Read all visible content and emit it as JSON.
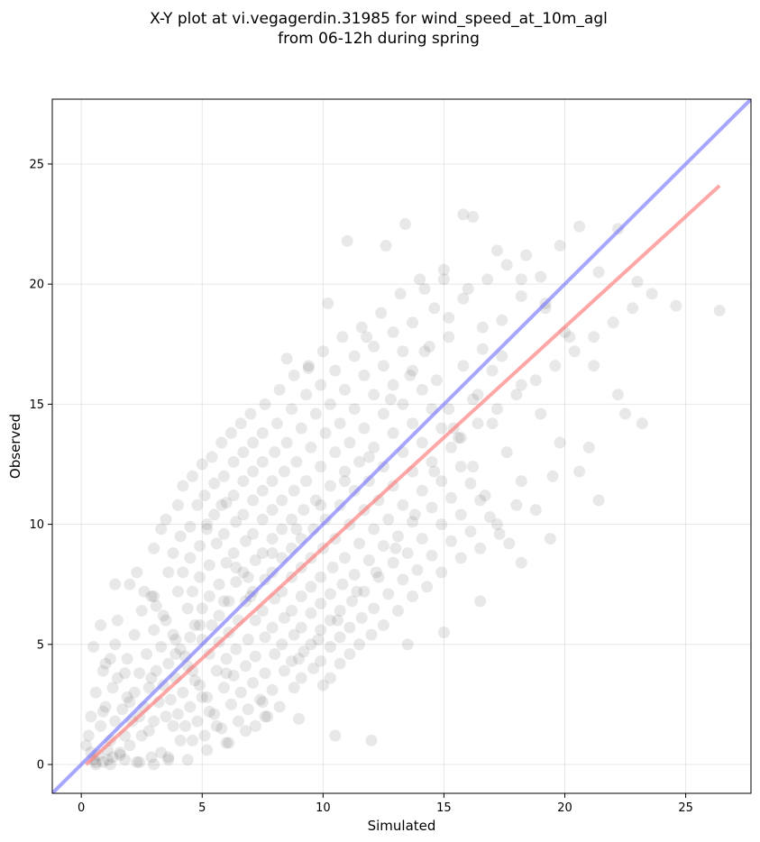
{
  "chart_data": {
    "type": "scatter",
    "title_line1": "X-Y plot at vi.vegagerdin.31985 for wind_speed_at_10m_agl",
    "title_line2": "from 06-12h during spring",
    "xlabel": "Simulated",
    "ylabel": "Observed",
    "xlim": [
      -1.2,
      27.7
    ],
    "ylim": [
      -1.2,
      27.7
    ],
    "x_ticks": [
      0,
      5,
      10,
      15,
      20,
      25
    ],
    "y_ticks": [
      0,
      5,
      10,
      15,
      20,
      25
    ],
    "grid": true,
    "point_color": "#000000",
    "point_opacity": 0.09,
    "identity_line": {
      "color": "#7777ff",
      "opacity": 0.65
    },
    "fit_line": {
      "color": "#ff7777",
      "opacity": 0.65,
      "x": [
        0.2,
        26.4
      ],
      "y": [
        0.0,
        24.1
      ]
    },
    "series": [
      {
        "x": [
          0.3,
          0.5,
          0.7,
          0.9,
          1.1,
          1.3,
          0.4,
          0.8,
          1.2,
          1.6,
          0.6,
          1.0,
          1.4,
          1.8,
          2.0,
          0.5,
          0.9,
          1.3,
          1.7,
          2.1,
          2.5,
          1.0,
          1.5,
          2.0,
          2.4,
          2.8,
          1.2,
          1.8,
          2.2,
          2.6,
          3.0,
          0.6,
          1.1,
          1.6,
          2.3,
          2.9,
          3.3,
          3.6,
          0.8,
          1.4,
          1.9,
          2.4,
          2.8,
          3.2,
          3.5,
          3.8,
          4.1,
          1.5,
          2.2,
          2.7,
          3.1,
          3.4,
          3.7,
          4.0,
          4.3,
          4.6,
          2.0,
          2.5,
          3.0,
          3.3,
          3.6,
          3.9,
          4.2,
          4.5,
          4.8,
          5.1,
          2.3,
          2.9,
          3.4,
          3.8,
          4.1,
          4.4,
          4.7,
          5.0,
          5.3,
          5.6,
          2.6,
          3.1,
          3.5,
          3.9,
          4.3,
          4.6,
          4.9,
          5.2,
          5.5,
          5.8,
          6.1,
          3.0,
          3.6,
          4.0,
          4.4,
          4.7,
          5.0,
          5.3,
          5.6,
          5.9,
          6.2,
          6.5,
          3.3,
          3.8,
          4.2,
          4.6,
          5.0,
          5.4,
          5.7,
          6.0,
          6.3,
          6.6,
          6.9,
          7.2,
          3.5,
          4.1,
          4.5,
          4.9,
          5.3,
          5.7,
          6.1,
          6.4,
          6.8,
          7.1,
          7.4,
          7.7,
          4.0,
          4.5,
          4.9,
          5.3,
          5.7,
          6.1,
          6.5,
          6.9,
          7.2,
          7.6,
          7.9,
          8.2,
          4.2,
          4.8,
          5.2,
          5.6,
          6.0,
          6.4,
          6.8,
          7.2,
          7.6,
          8.0,
          8.4,
          8.8,
          4.6,
          5.1,
          5.5,
          5.9,
          6.3,
          6.7,
          7.1,
          7.5,
          7.9,
          8.3,
          8.7,
          9.1,
          5.0,
          5.5,
          6.0,
          6.4,
          6.8,
          7.2,
          7.6,
          8.0,
          8.4,
          8.8,
          9.2,
          9.6,
          10.0,
          5.4,
          5.9,
          6.3,
          6.7,
          7.1,
          7.5,
          7.9,
          8.3,
          8.7,
          9.1,
          9.5,
          9.9,
          10.3,
          5.8,
          6.3,
          6.7,
          7.1,
          7.5,
          7.9,
          8.3,
          8.7,
          9.1,
          9.5,
          9.9,
          10.3,
          10.7,
          6.2,
          6.7,
          7.1,
          7.5,
          7.9,
          8.3,
          8.7,
          9.1,
          9.5,
          9.9,
          10.3,
          10.7,
          11.1,
          6.6,
          7.1,
          7.5,
          7.9,
          8.3,
          8.7,
          9.1,
          9.5,
          9.9,
          10.3,
          10.7,
          11.1,
          11.5,
          7.0,
          7.5,
          8.0,
          8.4,
          8.8,
          9.2,
          9.6,
          10.0,
          10.4,
          10.8,
          11.2,
          11.6,
          12.0,
          7.6,
          8.1,
          8.5,
          8.9,
          9.3,
          9.7,
          10.1,
          10.5,
          10.9,
          11.3,
          11.7,
          12.1,
          12.5,
          8.2,
          8.7,
          9.1,
          9.5,
          9.9,
          10.3,
          10.7,
          11.1,
          11.5,
          11.9,
          12.3,
          12.7,
          13.1,
          8.8,
          9.3,
          9.7,
          10.1,
          10.5,
          10.9,
          11.3,
          11.7,
          12.1,
          12.5,
          12.9,
          13.3,
          13.7,
          9.4,
          9.9,
          10.3,
          10.7,
          11.1,
          11.5,
          11.9,
          12.3,
          12.7,
          13.1,
          13.5,
          13.9,
          14.3,
          10.0,
          10.5,
          10.9,
          11.3,
          11.7,
          12.1,
          12.5,
          12.9,
          13.3,
          13.7,
          14.1,
          14.5,
          14.9,
          10.8,
          11.3,
          11.7,
          12.1,
          12.5,
          12.9,
          13.3,
          13.7,
          14.1,
          14.5,
          14.9,
          15.3,
          15.7,
          11.6,
          12.1,
          12.5,
          12.9,
          13.3,
          13.7,
          14.1,
          14.5,
          14.9,
          15.3,
          15.7,
          16.1,
          16.5,
          12.4,
          12.9,
          13.3,
          13.7,
          14.1,
          14.5,
          14.9,
          15.3,
          15.7,
          16.1,
          16.5,
          16.9,
          17.3,
          13.2,
          13.7,
          14.2,
          14.7,
          15.2,
          15.7,
          16.2,
          16.7,
          17.2,
          17.7,
          18.2,
          14.0,
          14.6,
          15.2,
          15.8,
          16.4,
          17.0,
          17.6,
          18.2,
          18.8,
          19.4,
          15.0,
          15.8,
          16.6,
          17.4,
          18.2,
          19.0,
          19.8,
          20.6,
          21.4,
          16.2,
          17.2,
          18.2,
          19.2,
          20.2,
          21.2,
          22.2,
          23.2,
          24.6,
          26.4,
          0.2,
          0.4,
          0.6,
          1.2,
          1.8,
          2.4,
          3.0,
          3.6,
          4.4,
          5.2,
          6.0,
          6.8,
          7.6,
          0.9,
          1.9,
          2.9,
          3.9,
          4.9,
          5.9,
          6.9,
          7.9,
          8.9,
          9.9,
          10.9,
          11.9,
          1.4,
          3.0,
          4.5,
          6.0,
          7.5,
          9.0,
          10.5,
          12.0,
          13.5,
          15.0,
          16.5,
          18.0,
          19.5,
          21.0,
          22.5,
          9.0,
          9.8,
          10.6,
          11.4,
          12.2,
          13.0,
          13.8,
          14.6,
          15.4,
          16.2,
          17.0,
          12.8,
          13.6,
          14.4,
          15.2,
          16.0,
          16.8,
          17.6,
          18.4,
          19.2,
          20.0,
          15.6,
          16.4,
          17.2,
          18.0,
          18.8,
          19.6,
          20.4,
          21.2,
          22.0,
          22.8,
          23.6,
          5.2,
          5.8,
          6.4,
          7.0,
          8.5,
          9.4,
          10.2,
          11.0,
          11.8,
          12.6,
          13.4,
          14.2,
          15.0,
          15.8,
          16.6,
          17.4,
          18.2,
          19.0,
          19.8,
          20.6,
          21.4,
          22.2,
          23.0
        ],
        "y": [
          1.2,
          0.2,
          0.4,
          0.1,
          0.6,
          0.3,
          2.0,
          1.6,
          1.0,
          0.5,
          3.0,
          2.4,
          1.8,
          1.2,
          0.8,
          4.9,
          3.9,
          3.2,
          2.3,
          1.8,
          1.2,
          4.2,
          3.6,
          2.6,
          2.0,
          1.4,
          4.4,
          3.8,
          3.0,
          2.4,
          1.8,
          0.0,
          0.2,
          0.4,
          0.1,
          0.3,
          0.5,
          0.2,
          5.8,
          5.0,
          4.4,
          3.8,
          3.2,
          2.6,
          2.0,
          1.6,
          1.0,
          6.0,
          5.4,
          4.6,
          3.9,
          3.3,
          2.7,
          2.1,
          1.6,
          1.0,
          7.5,
          6.4,
          5.6,
          4.9,
          4.2,
          3.6,
          3.0,
          2.4,
          1.8,
          1.2,
          8.0,
          7.0,
          6.2,
          5.4,
          4.8,
          4.1,
          3.5,
          2.8,
          2.2,
          1.6,
          7.2,
          6.6,
          6.0,
          5.2,
          4.5,
          3.9,
          3.3,
          2.8,
          2.1,
          1.5,
          0.9,
          9.0,
          8.0,
          7.2,
          6.5,
          5.8,
          5.2,
          4.6,
          3.9,
          3.2,
          2.5,
          1.8,
          9.8,
          8.8,
          8.0,
          7.2,
          6.5,
          5.8,
          5.1,
          4.4,
          3.7,
          3.0,
          2.3,
          1.6,
          10.2,
          9.5,
          8.6,
          7.8,
          7.0,
          6.2,
          5.5,
          4.8,
          4.1,
          3.4,
          2.7,
          2.0,
          10.8,
          9.9,
          9.1,
          8.3,
          7.5,
          6.8,
          6.0,
          5.2,
          4.5,
          3.8,
          3.1,
          2.4,
          11.6,
          10.8,
          10.0,
          9.2,
          8.4,
          7.6,
          6.8,
          6.0,
          5.3,
          4.6,
          3.9,
          3.2,
          12.0,
          11.2,
          10.4,
          9.6,
          8.8,
          8.0,
          7.2,
          6.4,
          5.7,
          5.0,
          4.3,
          3.6,
          12.5,
          11.7,
          10.9,
          10.1,
          9.3,
          8.5,
          7.7,
          6.9,
          6.1,
          5.4,
          4.7,
          4.0,
          3.3,
          12.8,
          12.0,
          11.2,
          10.4,
          9.6,
          8.8,
          8.0,
          7.2,
          6.4,
          5.7,
          5.0,
          4.3,
          3.6,
          13.4,
          12.6,
          11.8,
          11.0,
          10.2,
          9.4,
          8.6,
          7.8,
          7.0,
          6.3,
          5.6,
          4.9,
          4.2,
          13.8,
          13.0,
          12.2,
          11.4,
          10.6,
          9.8,
          9.0,
          8.2,
          7.4,
          6.7,
          6.0,
          5.3,
          4.6,
          14.2,
          13.4,
          12.6,
          11.8,
          11.0,
          10.2,
          9.4,
          8.6,
          7.8,
          7.1,
          6.4,
          5.7,
          5.0,
          14.6,
          13.8,
          13.0,
          12.2,
          11.4,
          10.6,
          9.8,
          9.0,
          8.2,
          7.5,
          6.8,
          6.1,
          5.4,
          15.0,
          14.2,
          13.4,
          12.6,
          11.8,
          11.0,
          10.2,
          9.4,
          8.6,
          7.9,
          7.2,
          6.5,
          5.8,
          15.6,
          14.8,
          14.0,
          13.2,
          12.4,
          11.6,
          10.8,
          10.0,
          9.2,
          8.5,
          7.8,
          7.1,
          6.4,
          16.2,
          15.4,
          14.6,
          13.8,
          13.0,
          12.2,
          11.4,
          10.6,
          9.8,
          9.1,
          8.4,
          7.7,
          7.0,
          16.6,
          15.8,
          15.0,
          14.2,
          13.4,
          12.6,
          11.8,
          11.0,
          10.2,
          9.5,
          8.8,
          8.1,
          7.4,
          17.2,
          16.4,
          15.6,
          14.8,
          14.0,
          13.2,
          12.4,
          11.6,
          10.8,
          10.1,
          9.4,
          8.7,
          8.0,
          17.8,
          17.0,
          16.2,
          15.4,
          14.6,
          13.8,
          13.0,
          12.2,
          11.4,
          10.7,
          10.0,
          9.3,
          8.6,
          18.2,
          17.4,
          16.6,
          15.8,
          15.0,
          14.2,
          13.4,
          12.6,
          11.8,
          11.1,
          10.4,
          9.7,
          9.0,
          18.8,
          18.0,
          17.2,
          16.4,
          15.6,
          14.8,
          14.0,
          13.2,
          12.4,
          11.7,
          11.0,
          10.3,
          9.6,
          19.6,
          18.4,
          17.2,
          16.0,
          14.8,
          13.6,
          12.4,
          11.2,
          10.0,
          9.2,
          8.4,
          20.2,
          19.0,
          17.8,
          16.6,
          15.4,
          14.2,
          13.0,
          11.8,
          10.6,
          9.4,
          20.6,
          19.4,
          18.2,
          17.0,
          15.8,
          14.6,
          13.4,
          12.2,
          11.0,
          22.8,
          21.4,
          20.2,
          19.0,
          17.8,
          16.6,
          15.4,
          14.2,
          19.1,
          18.9,
          0.8,
          0.5,
          0.1,
          0.0,
          0.2,
          0.1,
          0.0,
          0.3,
          0.2,
          0.6,
          0.9,
          1.4,
          2.0,
          2.2,
          2.8,
          3.6,
          4.6,
          5.8,
          6.8,
          7.8,
          8.8,
          9.8,
          10.8,
          11.8,
          12.8,
          7.5,
          7.0,
          5.3,
          3.8,
          2.6,
          1.9,
          1.2,
          1.0,
          5.0,
          5.5,
          6.8,
          10.8,
          12.0,
          13.2,
          14.6,
          4.4,
          5.2,
          6.0,
          7.2,
          8.0,
          9.0,
          10.4,
          12.2,
          14.0,
          15.2,
          16.4,
          15.2,
          16.2,
          17.4,
          18.6,
          19.8,
          20.2,
          20.8,
          21.2,
          19.2,
          18.0,
          13.6,
          14.2,
          14.8,
          15.4,
          16.0,
          16.6,
          17.2,
          17.8,
          18.4,
          19.0,
          19.6,
          9.8,
          10.8,
          8.2,
          7.0,
          16.9,
          16.5,
          19.2,
          21.8,
          17.8,
          21.6,
          22.5,
          19.8,
          20.2,
          22.9,
          17.3,
          18.5,
          19.5,
          20.3,
          21.6,
          22.4,
          20.5,
          22.3,
          20.1
        ]
      }
    ]
  }
}
